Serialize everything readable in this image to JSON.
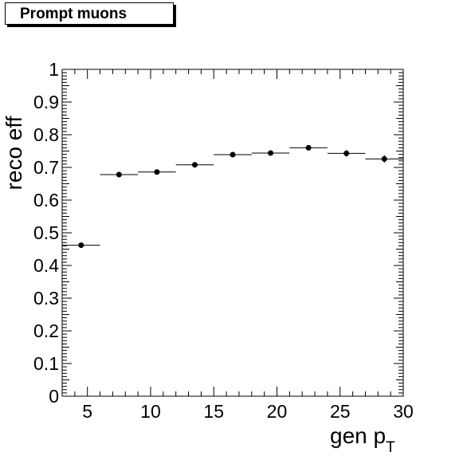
{
  "legend": {
    "title": "Prompt muons"
  },
  "chart_data": {
    "type": "scatter",
    "title": "Prompt muons",
    "xlabel": "gen p",
    "xlabel_subscript": "T",
    "ylabel": "reco eff",
    "xlim": [
      3,
      30
    ],
    "ylim": [
      0,
      1
    ],
    "xticks": [
      5,
      10,
      15,
      20,
      25,
      30
    ],
    "xtick_labels": [
      "5",
      "10",
      "15",
      "20",
      "25",
      "30"
    ],
    "yticks": [
      0,
      0.1,
      0.2,
      0.3,
      0.4,
      0.5,
      0.6,
      0.7,
      0.8,
      0.9,
      1
    ],
    "ytick_labels": [
      "0",
      "0.1",
      "0.2",
      "0.3",
      "0.4",
      "0.5",
      "0.6",
      "0.7",
      "0.8",
      "0.9",
      "1"
    ],
    "grid": false,
    "points": [
      {
        "x": 4.5,
        "xlo": 3,
        "xhi": 6,
        "y": 0.462,
        "yerr": 0.005
      },
      {
        "x": 7.5,
        "xlo": 6,
        "xhi": 9,
        "y": 0.678,
        "yerr": 0.005
      },
      {
        "x": 10.5,
        "xlo": 9,
        "xhi": 12,
        "y": 0.686,
        "yerr": 0.005
      },
      {
        "x": 13.5,
        "xlo": 12,
        "xhi": 15,
        "y": 0.708,
        "yerr": 0.006
      },
      {
        "x": 16.5,
        "xlo": 15,
        "xhi": 18,
        "y": 0.739,
        "yerr": 0.006
      },
      {
        "x": 19.5,
        "xlo": 18,
        "xhi": 21,
        "y": 0.744,
        "yerr": 0.007
      },
      {
        "x": 22.5,
        "xlo": 21,
        "xhi": 24,
        "y": 0.76,
        "yerr": 0.008
      },
      {
        "x": 25.5,
        "xlo": 24,
        "xhi": 27,
        "y": 0.743,
        "yerr": 0.01
      },
      {
        "x": 28.5,
        "xlo": 27,
        "xhi": 30,
        "y": 0.726,
        "yerr": 0.012
      }
    ]
  }
}
